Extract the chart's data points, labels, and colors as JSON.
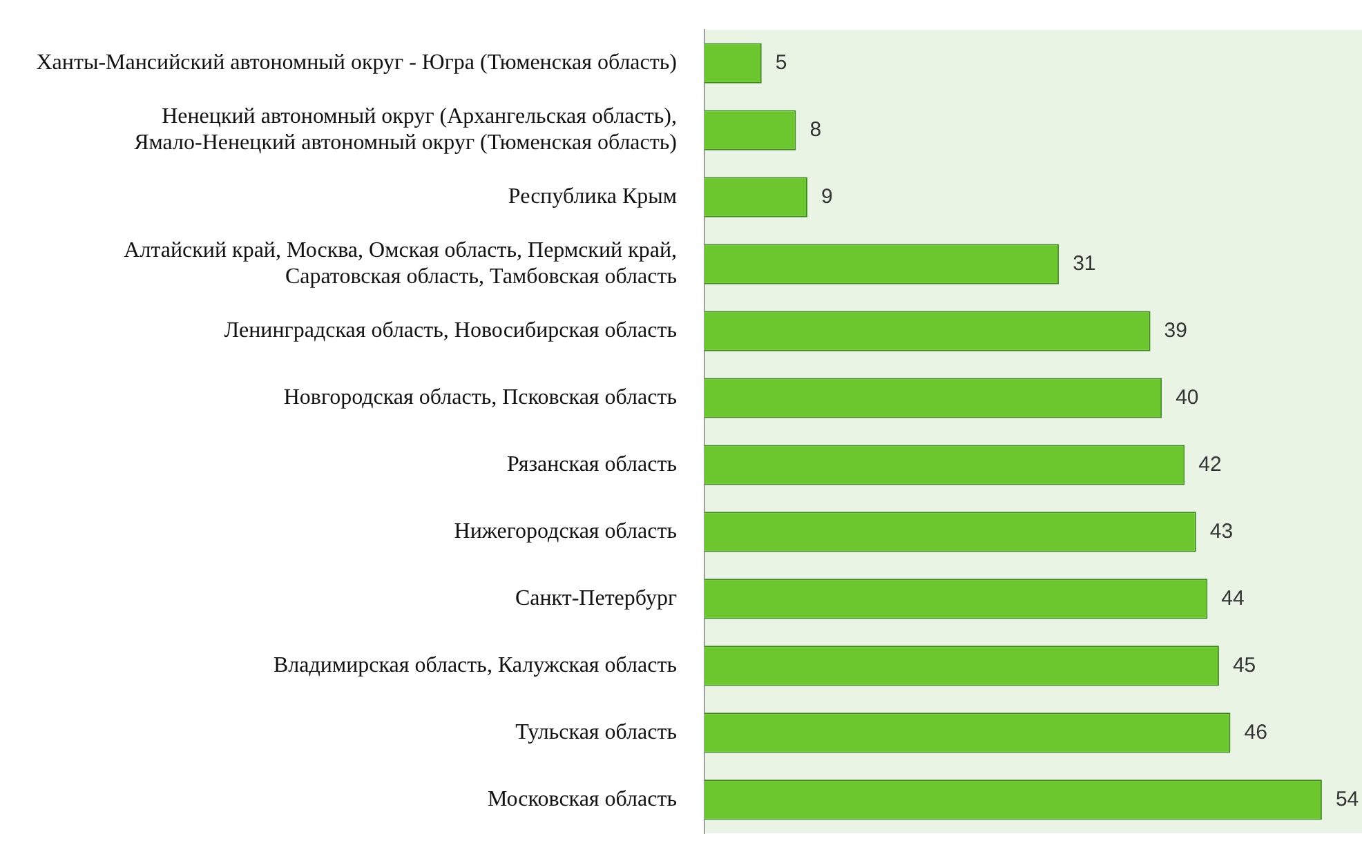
{
  "chart_data": {
    "type": "bar",
    "orientation": "horizontal",
    "data_labels": true,
    "legend": false,
    "categories": [
      "Ханты-Мансийский автономный округ - Югра (Тюменская область)",
      "Ненецкий автономный округ (Архангельская область), Ямало-Ненецкий автономный округ (Тюменская область)",
      "Республика Крым",
      "Алтайский край, Москва, Омская область, Пермский край, Саратовская область, Тамбовская область",
      "Ленинградская область, Новосибирская область",
      "Новгородская область, Псковская область",
      "Рязанская область",
      "Нижегородская область",
      "Санкт-Петербург",
      "Владимирская область, Калужская область",
      "Тульская область",
      "Московская область"
    ],
    "values": [
      5,
      8,
      9,
      31,
      39,
      40,
      42,
      43,
      44,
      45,
      46,
      54
    ],
    "color": "#6cc72f"
  }
}
